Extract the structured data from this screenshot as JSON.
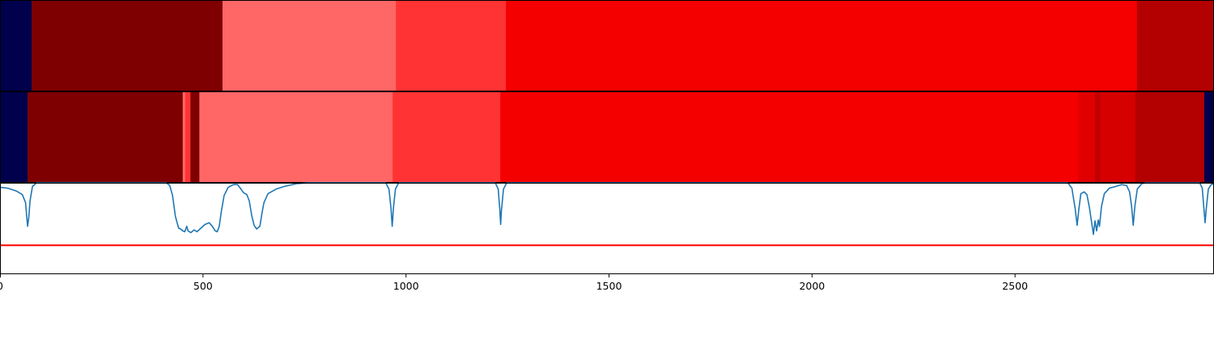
{
  "chart_data": {
    "type": "heatmap",
    "title": "",
    "xlabel": "",
    "ylabel": "",
    "xlim": [
      0,
      2990
    ],
    "xticks": [
      {
        "value": 0,
        "label": "0"
      },
      {
        "value": 500,
        "label": "500"
      },
      {
        "value": 1000,
        "label": "1000"
      },
      {
        "value": 1500,
        "label": "1500"
      },
      {
        "value": 2000,
        "label": "2000"
      },
      {
        "value": 2500,
        "label": "2500"
      }
    ],
    "segment_rows": [
      {
        "name": "",
        "segments": [
          {
            "start": 0,
            "end": 78,
            "color": "#00004c"
          },
          {
            "start": 78,
            "end": 548,
            "color": "#7f0000"
          },
          {
            "start": 548,
            "end": 975,
            "color": "#ff6666"
          },
          {
            "start": 975,
            "end": 1246,
            "color": "#ff3333"
          },
          {
            "start": 1246,
            "end": 2800,
            "color": "#f50000"
          },
          {
            "start": 2800,
            "end": 2990,
            "color": "#b30000"
          }
        ]
      },
      {
        "name": "",
        "segments": [
          {
            "start": 0,
            "end": 68,
            "color": "#00004c"
          },
          {
            "start": 68,
            "end": 450,
            "color": "#7f0000"
          },
          {
            "start": 450,
            "end": 456,
            "color": "#ff6666"
          },
          {
            "start": 456,
            "end": 469,
            "color": "#ff3333"
          },
          {
            "start": 469,
            "end": 491,
            "color": "#7f0000"
          },
          {
            "start": 491,
            "end": 967,
            "color": "#ff6666"
          },
          {
            "start": 967,
            "end": 1232,
            "color": "#ff3333"
          },
          {
            "start": 1232,
            "end": 2656,
            "color": "#f50000"
          },
          {
            "start": 2656,
            "end": 2697,
            "color": "#e00000"
          },
          {
            "start": 2697,
            "end": 2710,
            "color": "#c00000"
          },
          {
            "start": 2710,
            "end": 2796,
            "color": "#d60000"
          },
          {
            "start": 2796,
            "end": 2966,
            "color": "#b30000"
          },
          {
            "start": 2966,
            "end": 2990,
            "color": "#00004c"
          }
        ]
      }
    ],
    "curve": {
      "color": "#1f77b4",
      "ylim": [
        0,
        1
      ],
      "threshold": 0.31,
      "threshold_color": "#ff0000",
      "points": [
        [
          0,
          0.95
        ],
        [
          20,
          0.94
        ],
        [
          40,
          0.91
        ],
        [
          55,
          0.87
        ],
        [
          63,
          0.78
        ],
        [
          66,
          0.62
        ],
        [
          68,
          0.52
        ],
        [
          71,
          0.62
        ],
        [
          74,
          0.8
        ],
        [
          80,
          0.96
        ],
        [
          90,
          1.0
        ],
        [
          410,
          1.0
        ],
        [
          418,
          0.97
        ],
        [
          425,
          0.86
        ],
        [
          432,
          0.63
        ],
        [
          440,
          0.5
        ],
        [
          445,
          0.49
        ],
        [
          450,
          0.47
        ],
        [
          455,
          0.46
        ],
        [
          460,
          0.52
        ],
        [
          463,
          0.47
        ],
        [
          470,
          0.45
        ],
        [
          478,
          0.48
        ],
        [
          485,
          0.46
        ],
        [
          495,
          0.5
        ],
        [
          505,
          0.54
        ],
        [
          515,
          0.56
        ],
        [
          523,
          0.52
        ],
        [
          530,
          0.47
        ],
        [
          535,
          0.46
        ],
        [
          540,
          0.52
        ],
        [
          545,
          0.68
        ],
        [
          552,
          0.86
        ],
        [
          562,
          0.95
        ],
        [
          575,
          0.98
        ],
        [
          585,
          0.98
        ],
        [
          592,
          0.94
        ],
        [
          600,
          0.89
        ],
        [
          608,
          0.87
        ],
        [
          614,
          0.8
        ],
        [
          620,
          0.64
        ],
        [
          626,
          0.53
        ],
        [
          632,
          0.49
        ],
        [
          640,
          0.52
        ],
        [
          645,
          0.66
        ],
        [
          650,
          0.78
        ],
        [
          660,
          0.88
        ],
        [
          680,
          0.93
        ],
        [
          700,
          0.96
        ],
        [
          730,
          0.99
        ],
        [
          760,
          1.0
        ],
        [
          950,
          1.0
        ],
        [
          958,
          0.93
        ],
        [
          963,
          0.72
        ],
        [
          966,
          0.52
        ],
        [
          969,
          0.72
        ],
        [
          974,
          0.93
        ],
        [
          982,
          1.0
        ],
        [
          1220,
          1.0
        ],
        [
          1227,
          0.93
        ],
        [
          1231,
          0.7
        ],
        [
          1233,
          0.54
        ],
        [
          1235,
          0.7
        ],
        [
          1240,
          0.93
        ],
        [
          1248,
          1.0
        ],
        [
          2630,
          1.0
        ],
        [
          2640,
          0.94
        ],
        [
          2648,
          0.72
        ],
        [
          2653,
          0.53
        ],
        [
          2657,
          0.7
        ],
        [
          2662,
          0.88
        ],
        [
          2670,
          0.9
        ],
        [
          2677,
          0.87
        ],
        [
          2683,
          0.73
        ],
        [
          2688,
          0.58
        ],
        [
          2693,
          0.43
        ],
        [
          2697,
          0.58
        ],
        [
          2701,
          0.47
        ],
        [
          2705,
          0.59
        ],
        [
          2708,
          0.52
        ],
        [
          2713,
          0.74
        ],
        [
          2720,
          0.88
        ],
        [
          2732,
          0.94
        ],
        [
          2748,
          0.96
        ],
        [
          2762,
          0.98
        ],
        [
          2775,
          0.97
        ],
        [
          2782,
          0.9
        ],
        [
          2787,
          0.74
        ],
        [
          2791,
          0.53
        ],
        [
          2795,
          0.74
        ],
        [
          2801,
          0.93
        ],
        [
          2812,
          0.99
        ],
        [
          2822,
          1.0
        ],
        [
          2955,
          1.0
        ],
        [
          2961,
          0.94
        ],
        [
          2965,
          0.72
        ],
        [
          2968,
          0.56
        ],
        [
          2971,
          0.72
        ],
        [
          2976,
          0.93
        ],
        [
          2983,
          0.98
        ],
        [
          2990,
          0.99
        ]
      ]
    }
  }
}
